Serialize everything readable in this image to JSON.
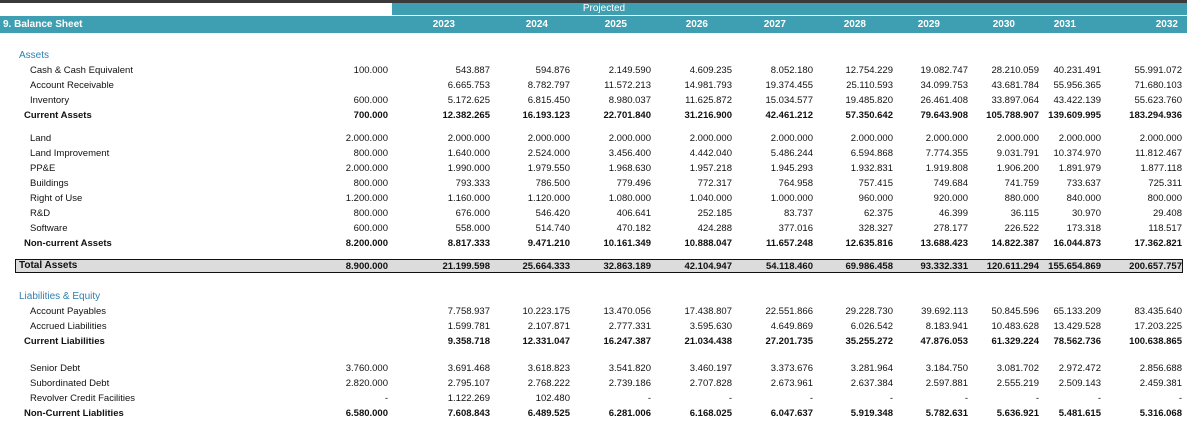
{
  "header": {
    "sheet_title": "9. Balance Sheet",
    "projected_label": "Projected",
    "years": [
      "2023",
      "2024",
      "2025",
      "2026",
      "2027",
      "2028",
      "2029",
      "2030",
      "2031",
      "2032"
    ]
  },
  "colors": {
    "header_bg": "#3d9fb1",
    "section_text": "#2f7fb0",
    "total_bg": "#dcdcdc"
  },
  "sections": {
    "assets": "Assets",
    "liab": "Liabilities & Equity"
  },
  "rows": [
    {
      "id": "cash",
      "label": "Cash & Cash Equivalent",
      "bold": false,
      "base": "100.000",
      "v": [
        "543.887",
        "594.876",
        "2.149.590",
        "4.609.235",
        "8.052.180",
        "12.754.229",
        "19.082.747",
        "28.210.059",
        "40.231.491",
        "55.991.072"
      ]
    },
    {
      "id": "ar",
      "label": "Account Receivable",
      "bold": false,
      "base": "",
      "v": [
        "6.665.753",
        "8.782.797",
        "11.572.213",
        "14.981.793",
        "19.374.455",
        "25.110.593",
        "34.099.753",
        "43.681.784",
        "55.956.365",
        "71.680.103"
      ]
    },
    {
      "id": "inv",
      "label": "Inventory",
      "bold": false,
      "base": "600.000",
      "v": [
        "5.172.625",
        "6.815.450",
        "8.980.037",
        "11.625.872",
        "15.034.577",
        "19.485.820",
        "26.461.408",
        "33.897.064",
        "43.422.139",
        "55.623.760"
      ]
    },
    {
      "id": "ca",
      "label": "Current Assets",
      "bold": true,
      "base": "700.000",
      "v": [
        "12.382.265",
        "16.193.123",
        "22.701.840",
        "31.216.900",
        "42.461.212",
        "57.350.642",
        "79.643.908",
        "105.788.907",
        "139.609.995",
        "183.294.936"
      ]
    },
    {
      "id": "land",
      "label": "Land",
      "bold": false,
      "base": "2.000.000",
      "v": [
        "2.000.000",
        "2.000.000",
        "2.000.000",
        "2.000.000",
        "2.000.000",
        "2.000.000",
        "2.000.000",
        "2.000.000",
        "2.000.000",
        "2.000.000"
      ]
    },
    {
      "id": "li",
      "label": "Land Improvement",
      "bold": false,
      "base": "800.000",
      "v": [
        "1.640.000",
        "2.524.000",
        "3.456.400",
        "4.442.040",
        "5.486.244",
        "6.594.868",
        "7.774.355",
        "9.031.791",
        "10.374.970",
        "11.812.467"
      ]
    },
    {
      "id": "ppe",
      "label": "PP&E",
      "bold": false,
      "base": "2.000.000",
      "v": [
        "1.990.000",
        "1.979.550",
        "1.968.630",
        "1.957.218",
        "1.945.293",
        "1.932.831",
        "1.919.808",
        "1.906.200",
        "1.891.979",
        "1.877.118"
      ]
    },
    {
      "id": "bld",
      "label": "Buildings",
      "bold": false,
      "base": "800.000",
      "v": [
        "793.333",
        "786.500",
        "779.496",
        "772.317",
        "764.958",
        "757.415",
        "749.684",
        "741.759",
        "733.637",
        "725.311"
      ]
    },
    {
      "id": "rou",
      "label": "Right of Use",
      "bold": false,
      "base": "1.200.000",
      "v": [
        "1.160.000",
        "1.120.000",
        "1.080.000",
        "1.040.000",
        "1.000.000",
        "960.000",
        "920.000",
        "880.000",
        "840.000",
        "800.000"
      ]
    },
    {
      "id": "rd",
      "label": "R&D",
      "bold": false,
      "base": "800.000",
      "v": [
        "676.000",
        "546.420",
        "406.641",
        "252.185",
        "83.737",
        "62.375",
        "46.399",
        "36.115",
        "30.970",
        "29.408"
      ]
    },
    {
      "id": "sw",
      "label": "Software",
      "bold": false,
      "base": "600.000",
      "v": [
        "558.000",
        "514.740",
        "470.182",
        "424.288",
        "377.016",
        "328.327",
        "278.177",
        "226.522",
        "173.318",
        "118.517"
      ]
    },
    {
      "id": "nca",
      "label": "Non-current Assets",
      "bold": true,
      "base": "8.200.000",
      "v": [
        "8.817.333",
        "9.471.210",
        "10.161.349",
        "10.888.047",
        "11.657.248",
        "12.635.816",
        "13.688.423",
        "14.822.387",
        "16.044.873",
        "17.362.821"
      ]
    },
    {
      "id": "ta",
      "label": "Total Assets",
      "bold": true,
      "base": "8.900.000",
      "v": [
        "21.199.598",
        "25.664.333",
        "32.863.189",
        "42.104.947",
        "54.118.460",
        "69.986.458",
        "93.332.331",
        "120.611.294",
        "155.654.869",
        "200.657.757"
      ]
    },
    {
      "id": "ap",
      "label": "Account Payables",
      "bold": false,
      "base": "",
      "v": [
        "7.758.937",
        "10.223.175",
        "13.470.056",
        "17.438.807",
        "22.551.866",
        "29.228.730",
        "39.692.113",
        "50.845.596",
        "65.133.209",
        "83.435.640"
      ]
    },
    {
      "id": "al",
      "label": "Accrued Liabilities",
      "bold": false,
      "base": "",
      "v": [
        "1.599.781",
        "2.107.871",
        "2.777.331",
        "3.595.630",
        "4.649.869",
        "6.026.542",
        "8.183.941",
        "10.483.628",
        "13.429.528",
        "17.203.225"
      ]
    },
    {
      "id": "cl",
      "label": "Current Liabilities",
      "bold": true,
      "base": "",
      "v": [
        "9.358.718",
        "12.331.047",
        "16.247.387",
        "21.034.438",
        "27.201.735",
        "35.255.272",
        "47.876.053",
        "61.329.224",
        "78.562.736",
        "100.638.865"
      ]
    },
    {
      "id": "sd",
      "label": "Senior Debt",
      "bold": false,
      "base": "3.760.000",
      "v": [
        "3.691.468",
        "3.618.823",
        "3.541.820",
        "3.460.197",
        "3.373.676",
        "3.281.964",
        "3.184.750",
        "3.081.702",
        "2.972.472",
        "2.856.688"
      ]
    },
    {
      "id": "sub",
      "label": "Subordinated Debt",
      "bold": false,
      "base": "2.820.000",
      "v": [
        "2.795.107",
        "2.768.222",
        "2.739.186",
        "2.707.828",
        "2.673.961",
        "2.637.384",
        "2.597.881",
        "2.555.219",
        "2.509.143",
        "2.459.381"
      ]
    },
    {
      "id": "rcf",
      "label": "Revolver Credit Facilities",
      "bold": false,
      "base": "-",
      "v": [
        "1.122.269",
        "102.480",
        "-",
        "-",
        "-",
        "-",
        "-",
        "-",
        "-",
        "-"
      ]
    },
    {
      "id": "ncl",
      "label": "Non-Current Liablities",
      "bold": true,
      "base": "6.580.000",
      "v": [
        "7.608.843",
        "6.489.525",
        "6.281.006",
        "6.168.025",
        "6.047.637",
        "5.919.348",
        "5.782.631",
        "5.636.921",
        "5.481.615",
        "5.316.068"
      ]
    }
  ]
}
